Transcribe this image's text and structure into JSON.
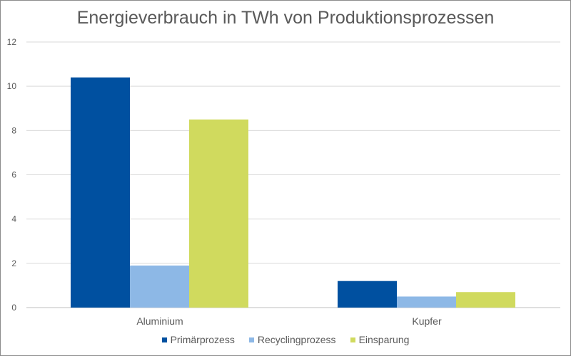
{
  "chart_data": {
    "type": "bar",
    "title": "Energieverbrauch in TWh von Produktionsprozessen",
    "xlabel": "",
    "ylabel": "",
    "categories": [
      "Aluminium",
      "Kupfer"
    ],
    "series": [
      {
        "name": "Primärprozess",
        "values": [
          10.4,
          1.2
        ],
        "color": "#0050a0"
      },
      {
        "name": "Recyclingprozess",
        "values": [
          1.9,
          0.5
        ],
        "color": "#8db8e6"
      },
      {
        "name": "Einsparung",
        "values": [
          8.5,
          0.7
        ],
        "color": "#d0da5e"
      }
    ],
    "ylim": [
      0,
      12
    ],
    "yticks": [
      0,
      2,
      4,
      6,
      8,
      10,
      12
    ],
    "grid": true,
    "legend_position": "bottom",
    "axis_text_color": "#595959",
    "gridline_color": "#d9d9d9"
  }
}
